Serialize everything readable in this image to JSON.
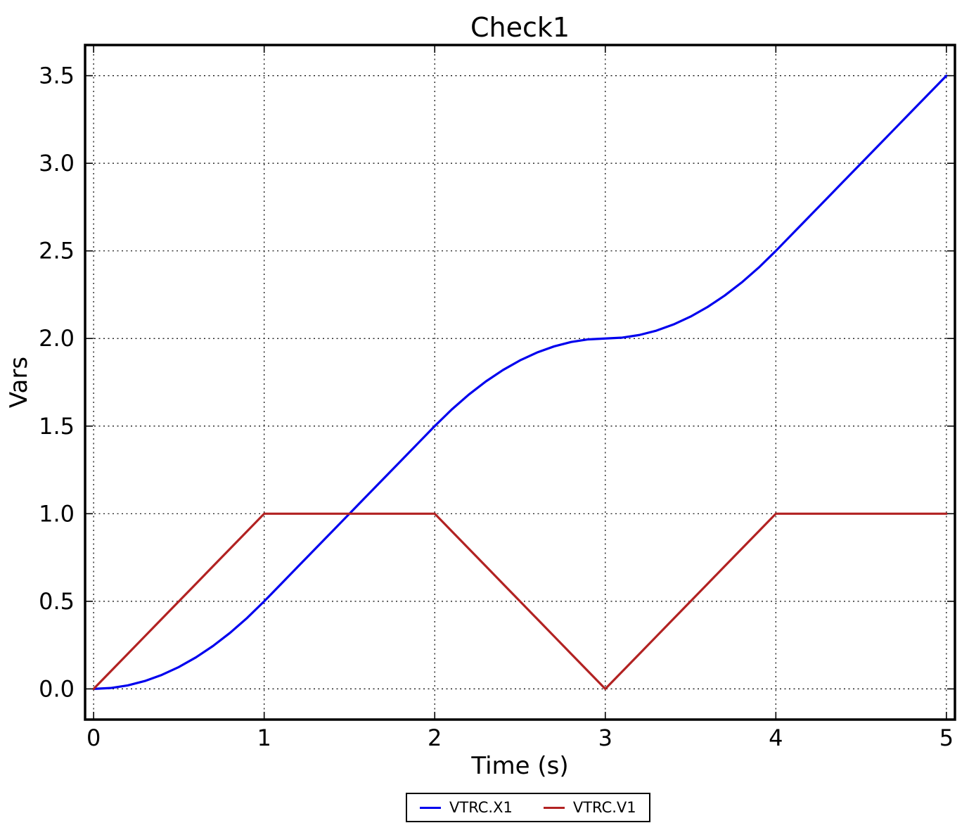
{
  "figure": {
    "background": "#ffffff",
    "frame_color": "#000000",
    "grid_style": "dotted"
  },
  "chart_data": {
    "type": "line",
    "title": "Check1",
    "xlabel": "Time (s)",
    "ylabel": "Vars",
    "xlim": [
      -0.05,
      5.05
    ],
    "ylim": [
      -0.175,
      3.675
    ],
    "grid": true,
    "legend_position": "bottom-center",
    "x_ticks": {
      "values": [
        0,
        1,
        2,
        3,
        4,
        5
      ],
      "labels": [
        "0",
        "1",
        "2",
        "3",
        "4",
        "5"
      ]
    },
    "y_ticks": {
      "values": [
        0,
        0.5,
        1,
        1.5,
        2,
        2.5,
        3,
        3.5
      ],
      "labels": [
        "0.0",
        "0.5",
        "1.0",
        "1.5",
        "2.0",
        "2.5",
        "3.0",
        "3.5"
      ]
    },
    "x": [
      0,
      0.1,
      0.2,
      0.3,
      0.4,
      0.5,
      0.6,
      0.7,
      0.8,
      0.9,
      1,
      1.1,
      1.2,
      1.3,
      1.4,
      1.5,
      1.6,
      1.7,
      1.8,
      1.9,
      2,
      2.1,
      2.2,
      2.3,
      2.4,
      2.5,
      2.6,
      2.7,
      2.8,
      2.9,
      3,
      3.1,
      3.2,
      3.3,
      3.4,
      3.5,
      3.6,
      3.7,
      3.8,
      3.9,
      4,
      4.1,
      4.2,
      4.3,
      4.4,
      4.5,
      4.6,
      4.7,
      4.8,
      4.9,
      5
    ],
    "series": [
      {
        "name": "VTRC.X1",
        "color": "#0000ee",
        "y": [
          0,
          0.005,
          0.02,
          0.045,
          0.08,
          0.125,
          0.18,
          0.245,
          0.32,
          0.405,
          0.5,
          0.6,
          0.7,
          0.8,
          0.9,
          1,
          1.1,
          1.2,
          1.3,
          1.4,
          1.5,
          1.595,
          1.68,
          1.755,
          1.82,
          1.875,
          1.92,
          1.955,
          1.98,
          1.995,
          2,
          2.005,
          2.02,
          2.045,
          2.08,
          2.125,
          2.18,
          2.245,
          2.32,
          2.405,
          2.5,
          2.6,
          2.7,
          2.8,
          2.9,
          3,
          3.1,
          3.2,
          3.3,
          3.4,
          3.5
        ]
      },
      {
        "name": "VTRC.V1",
        "color": "#b22222",
        "y": [
          0,
          0.1,
          0.2,
          0.3,
          0.4,
          0.5,
          0.6,
          0.7,
          0.8,
          0.9,
          1,
          1,
          1,
          1,
          1,
          1,
          1,
          1,
          1,
          1,
          1,
          0.9,
          0.8,
          0.7,
          0.6,
          0.5,
          0.4,
          0.3,
          0.2,
          0.1,
          0,
          0.1,
          0.2,
          0.3,
          0.4,
          0.5,
          0.6,
          0.7,
          0.8,
          0.9,
          1,
          1,
          1,
          1,
          1,
          1,
          1,
          1,
          1,
          1,
          1
        ]
      }
    ]
  }
}
